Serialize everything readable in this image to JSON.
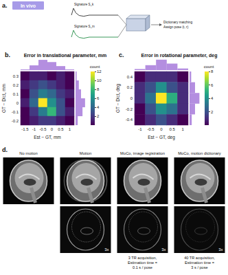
{
  "panel_a": {
    "label": "a.",
    "tag": "In vivo",
    "signatures": [
      "Signature S_k",
      "Signature S_m"
    ],
    "steps": [
      "Dictionary matching",
      "Assign pose (t, r)"
    ]
  },
  "chart_data": [
    {
      "type": "heatmap",
      "label": "b.",
      "title": "Error in translational parameter, mm",
      "x_label": "Est − GT, mm",
      "y_label": "GT − Dict, mm",
      "x": [
        -1.5,
        -1,
        -0.5,
        0,
        0.5,
        1
      ],
      "y": [
        0.3,
        0.2,
        0.1,
        0,
        -0.1,
        -0.2
      ],
      "cells": [
        [
          0,
          1,
          1,
          0,
          1,
          0
        ],
        [
          1,
          2,
          3,
          2,
          1,
          0
        ],
        [
          0,
          3,
          5,
          4,
          2,
          1
        ],
        [
          1,
          4,
          12,
          6,
          3,
          0
        ],
        [
          0,
          2,
          5,
          8,
          3,
          1
        ],
        [
          0,
          1,
          2,
          2,
          1,
          0
        ]
      ],
      "colorbar": {
        "label": "count",
        "range": [
          0,
          12
        ],
        "ticks": [
          2,
          4,
          6,
          8,
          10,
          12
        ]
      },
      "x_hist": {
        "values": [
          2,
          13,
          28,
          22,
          11,
          2
        ],
        "lim": [
          0,
          30
        ]
      },
      "y_hist": {
        "values": [
          3,
          9,
          15,
          26,
          19,
          6
        ],
        "lim": [
          0,
          30
        ]
      },
      "color": "#b48ee0"
    },
    {
      "type": "heatmap",
      "label": "c.",
      "title": "Error in rotational parameter, deg",
      "x_label": "Est − GT, deg",
      "y_label": "GT − Dict, deg",
      "x": [
        -1,
        -0.5,
        0,
        0.5,
        1
      ],
      "y": [
        0.4,
        0.2,
        0,
        -0.2,
        -0.4
      ],
      "cells": [
        [
          0,
          1,
          1,
          1,
          0
        ],
        [
          1,
          2,
          4,
          2,
          1
        ],
        [
          1,
          3,
          8,
          5,
          1
        ],
        [
          0,
          2,
          4,
          3,
          1
        ],
        [
          0,
          1,
          2,
          1,
          0
        ]
      ],
      "colorbar": {
        "label": "count",
        "range": [
          0,
          8
        ],
        "ticks": [
          2,
          4,
          6,
          8
        ]
      },
      "x_hist": {
        "values": [
          2,
          9,
          19,
          12,
          3
        ],
        "lim": [
          0,
          20
        ]
      },
      "y_hist": {
        "values": [
          3,
          10,
          18,
          10,
          4
        ],
        "lim": [
          0,
          20
        ]
      },
      "color": "#b48ee0"
    }
  ],
  "panel_d": {
    "label": "d.",
    "columns": [
      {
        "title": "No motion"
      },
      {
        "title": "Motion",
        "scale": "3x"
      },
      {
        "title": "MoCo, image registration",
        "scale": "3x",
        "caption": [
          "3 TR acquisition,",
          "Estimation time =",
          "0.1 s / pose"
        ]
      },
      {
        "title": "MoCo, motion dictionary",
        "scale": "3x",
        "caption": [
          "40 TR acquisition,",
          "Estimation time =",
          "3 s / pose"
        ]
      }
    ]
  }
}
